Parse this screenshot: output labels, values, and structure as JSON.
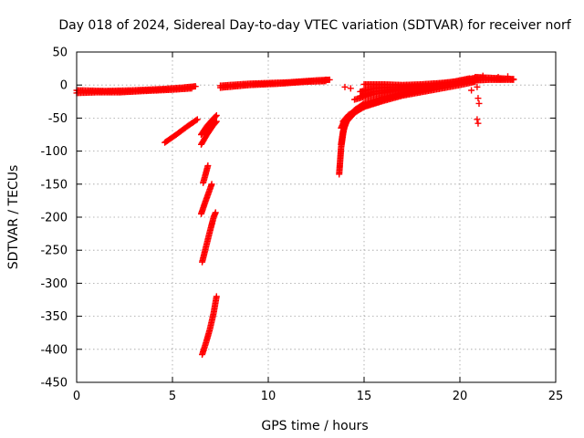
{
  "chart_data": {
    "type": "scatter",
    "title": "Day 018 of 2024, Sidereal Day-to-day VTEC variation (SDTVAR) for receiver norf",
    "xlabel": "GPS time / hours",
    "ylabel": "SDTVAR / TECUs",
    "xlim": [
      0,
      25
    ],
    "ylim": [
      -450,
      50
    ],
    "xticks": [
      0,
      5,
      10,
      15,
      20,
      25
    ],
    "yticks": [
      50,
      0,
      -50,
      -100,
      -150,
      -200,
      -250,
      -300,
      -350,
      -400,
      -450
    ],
    "grid": true,
    "marker": "plus",
    "color": "#ff0000",
    "series": [
      {
        "segments": [
          [
            [
              0.0,
              -8
            ],
            [
              1.5,
              -9
            ],
            [
              3.0,
              -8
            ],
            [
              4.5,
              -6
            ],
            [
              5.5,
              -4
            ],
            [
              6.2,
              -2
            ]
          ],
          [
            [
              0.0,
              -12
            ],
            [
              1.0,
              -11
            ],
            [
              2.2,
              -11
            ],
            [
              3.5,
              -9
            ],
            [
              5.0,
              -7
            ],
            [
              6.0,
              -5
            ]
          ],
          [
            [
              7.5,
              -1
            ],
            [
              9.0,
              2
            ],
            [
              10.0,
              3
            ],
            [
              11.0,
              4
            ],
            [
              12.5,
              7
            ],
            [
              13.2,
              8
            ]
          ],
          [
            [
              7.5,
              -4
            ],
            [
              9.0,
              0
            ],
            [
              10.5,
              2
            ],
            [
              12.0,
              5
            ],
            [
              13.0,
              6
            ]
          ],
          [
            [
              4.6,
              -87
            ],
            [
              5.2,
              -75
            ],
            [
              5.8,
              -62
            ],
            [
              6.3,
              -52
            ]
          ],
          [
            [
              6.5,
              -75
            ],
            [
              6.8,
              -62
            ],
            [
              7.1,
              -52
            ],
            [
              7.3,
              -46
            ]
          ],
          [
            [
              6.5,
              -90
            ],
            [
              6.8,
              -75
            ],
            [
              7.1,
              -62
            ],
            [
              7.3,
              -55
            ]
          ],
          [
            [
              6.6,
              -148
            ],
            [
              6.7,
              -138
            ],
            [
              6.85,
              -122
            ]
          ],
          [
            [
              6.5,
              -195
            ],
            [
              6.7,
              -178
            ],
            [
              6.9,
              -162
            ],
            [
              7.05,
              -150
            ]
          ],
          [
            [
              6.55,
              -268
            ],
            [
              6.75,
              -245
            ],
            [
              6.95,
              -222
            ],
            [
              7.15,
              -200
            ],
            [
              7.25,
              -193
            ]
          ],
          [
            [
              6.55,
              -408
            ],
            [
              6.75,
              -390
            ],
            [
              6.95,
              -370
            ],
            [
              7.15,
              -345
            ],
            [
              7.3,
              -320
            ]
          ],
          [
            [
              13.7,
              -135
            ],
            [
              13.75,
              -115
            ],
            [
              13.8,
              -95
            ],
            [
              13.9,
              -75
            ],
            [
              14.0,
              -60
            ],
            [
              14.2,
              -48
            ],
            [
              14.5,
              -38
            ],
            [
              15.0,
              -28
            ],
            [
              16.0,
              -18
            ],
            [
              17.5,
              -10
            ],
            [
              19.0,
              -2
            ],
            [
              20.5,
              6
            ]
          ],
          [
            [
              13.8,
              -90
            ],
            [
              13.9,
              -70
            ],
            [
              14.1,
              -55
            ],
            [
              14.5,
              -42
            ],
            [
              15.0,
              -33
            ],
            [
              16.0,
              -24
            ],
            [
              17.0,
              -16
            ],
            [
              18.5,
              -8
            ],
            [
              20.0,
              0
            ],
            [
              20.8,
              5
            ]
          ],
          [
            [
              13.8,
              -65
            ],
            [
              14.0,
              -52
            ],
            [
              14.4,
              -42
            ],
            [
              15.0,
              -33
            ],
            [
              16.0,
              -22
            ],
            [
              17.0,
              -14
            ],
            [
              18.0,
              -8
            ]
          ],
          [
            [
              13.9,
              -55
            ],
            [
              14.2,
              -45
            ],
            [
              14.8,
              -35
            ],
            [
              15.5,
              -26
            ],
            [
              16.5,
              -18
            ],
            [
              17.5,
              -11
            ],
            [
              18.5,
              -6
            ]
          ],
          [
            [
              14.8,
              -10
            ],
            [
              15.5,
              -5
            ],
            [
              16.5,
              -3
            ],
            [
              17.5,
              -2
            ],
            [
              18.5,
              -1
            ],
            [
              19.5,
              4
            ],
            [
              20.5,
              10
            ]
          ],
          [
            [
              14.5,
              -22
            ],
            [
              15.5,
              -14
            ],
            [
              16.5,
              -9
            ],
            [
              17.5,
              -5
            ],
            [
              18.5,
              -3
            ]
          ],
          [
            [
              14.8,
              -17
            ],
            [
              15.5,
              -10
            ],
            [
              16.5,
              -7
            ],
            [
              17.5,
              -4
            ]
          ],
          [
            [
              15.0,
              1
            ],
            [
              16.0,
              1
            ],
            [
              17.0,
              0
            ],
            [
              18.0,
              1
            ],
            [
              19.0,
              3
            ],
            [
              20.0,
              6
            ],
            [
              20.8,
              11
            ]
          ],
          [
            [
              20.8,
              12
            ],
            [
              21.5,
              11
            ],
            [
              22.2,
              10
            ],
            [
              22.8,
              9
            ]
          ],
          [
            [
              20.8,
              7
            ],
            [
              21.5,
              8
            ],
            [
              22.2,
              8
            ],
            [
              22.8,
              8
            ]
          ]
        ]
      },
      {
        "points": [
          [
            13.0,
            8
          ],
          [
            12.8,
            6
          ],
          [
            14.0,
            -3
          ],
          [
            14.3,
            -5
          ],
          [
            20.9,
            -3
          ],
          [
            20.95,
            -20
          ],
          [
            21.0,
            -28
          ],
          [
            20.9,
            -52
          ],
          [
            20.95,
            -58
          ],
          [
            20.7,
            5
          ],
          [
            20.6,
            -8
          ],
          [
            22.0,
            12
          ],
          [
            22.5,
            13
          ],
          [
            21.2,
            14
          ]
        ]
      }
    ]
  }
}
